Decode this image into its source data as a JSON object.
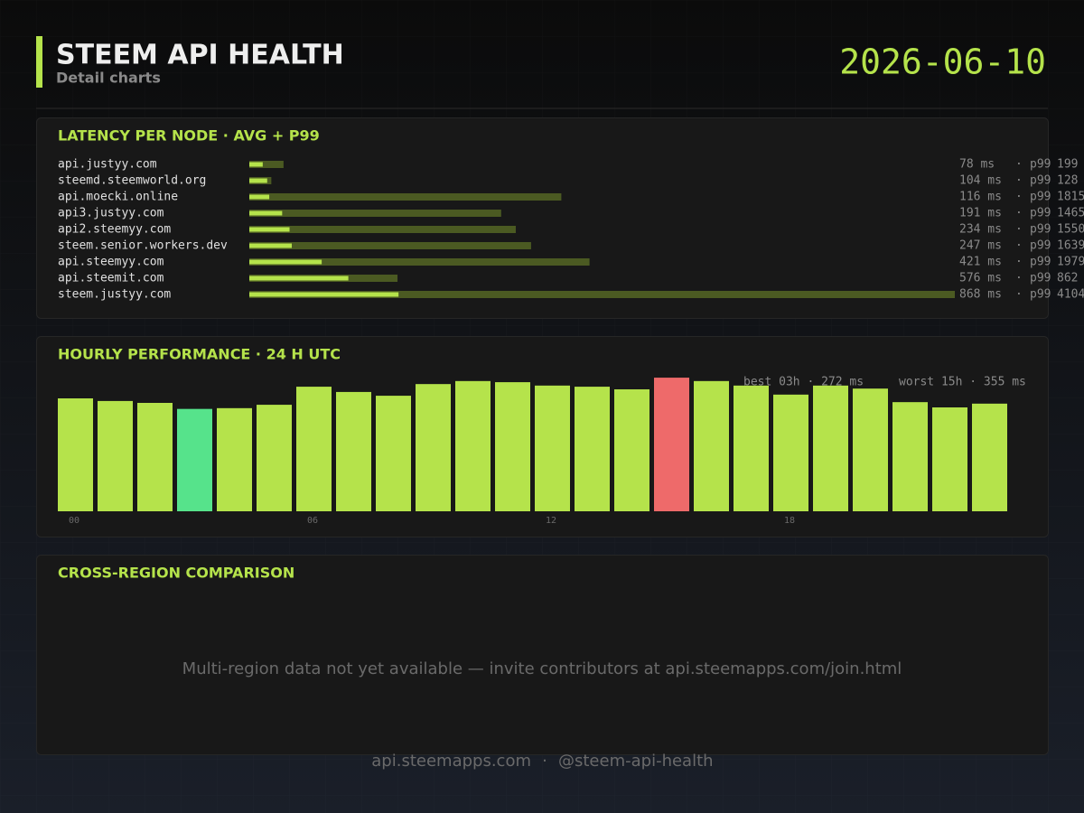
{
  "header": {
    "title": "STEEM API HEALTH",
    "subtitle": "Detail charts",
    "date": "2026-06-10"
  },
  "chart_data": [
    {
      "type": "bar",
      "orientation": "horizontal",
      "title": "LATENCY PER NODE  ·  AVG + P99",
      "categories": [
        "api.justyy.com",
        "steemd.steemworld.org",
        "api.moecki.online",
        "api3.justyy.com",
        "api2.steemyy.com",
        "steem.senior.workers.dev",
        "api.steemyy.com",
        "api.steemit.com",
        "steem.justyy.com"
      ],
      "series": [
        {
          "color": "#b5e34b",
          "values": [
            78,
            104,
            116,
            191,
            234,
            247,
            421,
            576,
            868
          ],
          "value_labels": [
            "78 ms",
            "104 ms",
            "116 ms",
            "191 ms",
            "234 ms",
            "247 ms",
            "421 ms",
            "576 ms",
            "868 ms"
          ]
        },
        {
          "name": "p99",
          "color": "#4b5a22",
          "values": [
            199,
            128,
            1815,
            1465,
            1550,
            1639,
            1979,
            862,
            4104
          ]
        }
      ],
      "xlim": [
        0,
        4104
      ]
    },
    {
      "type": "bar",
      "title": "HOURLY PERFORMANCE  ·  24 H UTC",
      "categories": [
        "00",
        null,
        null,
        null,
        null,
        null,
        "06",
        null,
        null,
        null,
        null,
        null,
        "12",
        null,
        null,
        null,
        null,
        null,
        "18",
        null,
        null,
        null,
        null,
        null
      ],
      "values": [
        300,
        293,
        288,
        272,
        274,
        283,
        331,
        317,
        307,
        338,
        346,
        343,
        334,
        331,
        324,
        355,
        346,
        334,
        310,
        334,
        326,
        290,
        276,
        286
      ],
      "colors": [
        "#b5e34b",
        "#b5e34b",
        "#b5e34b",
        "#56e38b",
        "#b5e34b",
        "#b5e34b",
        "#b5e34b",
        "#b5e34b",
        "#b5e34b",
        "#b5e34b",
        "#b5e34b",
        "#b5e34b",
        "#b5e34b",
        "#b5e34b",
        "#b5e34b",
        "#ee6a6a",
        "#b5e34b",
        "#b5e34b",
        "#b5e34b",
        "#b5e34b",
        "#b5e34b",
        "#b5e34b",
        "#b5e34b",
        "#b5e34b"
      ],
      "ylim": [
        0,
        360
      ],
      "annotations": [
        "best 03h · 272 ms",
        "worst 15h · 355 ms"
      ]
    }
  ],
  "comparison": {
    "title": "CROSS-REGION COMPARISON",
    "message": "Multi-region data not yet available — invite contributors at api.steemapps.com/join.html"
  },
  "footer": {
    "site": "api.steemapps.com",
    "handle": "@steem-api-health"
  }
}
